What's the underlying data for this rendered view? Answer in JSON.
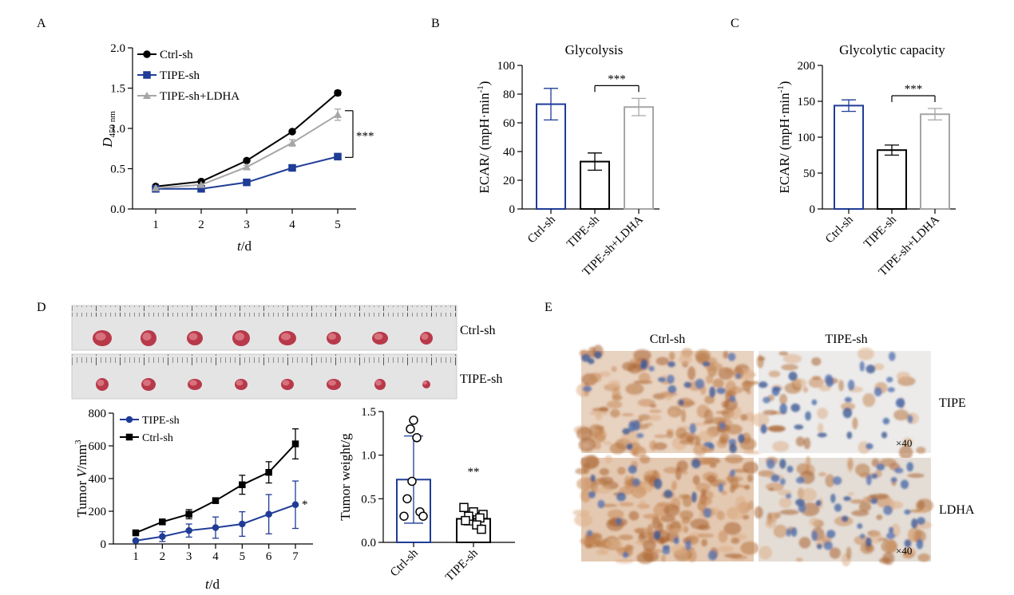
{
  "panels": {
    "A": "A",
    "B": "B",
    "C": "C",
    "D": "D",
    "E": "E"
  },
  "chart_data": [
    {
      "id": "A",
      "type": "line",
      "xlabel_italic": "t",
      "xlabel_unit": "/d",
      "ylabel_italic": "D",
      "ylabel_sub": "450 nm",
      "x": [
        1,
        2,
        3,
        4,
        5
      ],
      "xticks": [
        "1",
        "2",
        "3",
        "4",
        "5"
      ],
      "ylim": [
        0,
        2.0
      ],
      "yticks": [
        "0.0",
        "0.5",
        "1.0",
        "1.5",
        "2.0"
      ],
      "legend": "top-left",
      "series": [
        {
          "name": "Ctrl-sh",
          "color": "#000000",
          "marker": "circle",
          "values": [
            0.28,
            0.34,
            0.6,
            0.96,
            1.44
          ],
          "err": [
            0.01,
            0.01,
            0.02,
            0.02,
            0.03
          ]
        },
        {
          "name": "TIPE-sh",
          "color": "#1f3c96",
          "marker": "square",
          "values": [
            0.25,
            0.25,
            0.33,
            0.51,
            0.65
          ],
          "err": [
            0.01,
            0.01,
            0.01,
            0.02,
            0.02
          ]
        },
        {
          "name": "TIPE-sh+LDHA",
          "color": "#a6a6a6",
          "marker": "triangle",
          "values": [
            0.26,
            0.3,
            0.52,
            0.82,
            1.17
          ],
          "err": [
            0.01,
            0.01,
            0.02,
            0.04,
            0.07
          ]
        }
      ],
      "significance": "***"
    },
    {
      "id": "B",
      "type": "bar",
      "title": "Glycolysis",
      "ylabel": "ECAR/ (mpH·min",
      "ylabel_sup": "-1",
      "ylabel_close": ")",
      "ylim": [
        0,
        100
      ],
      "yticks": [
        "0",
        "20",
        "40",
        "60",
        "80",
        "100"
      ],
      "categories": [
        "Ctrl-sh",
        "TIPE-sh",
        "TIPE-sh+LDHA"
      ],
      "values": [
        73,
        33,
        71
      ],
      "errors": [
        11,
        6,
        6
      ],
      "colors": [
        "#1f3c96",
        "#000000",
        "#a6a6a6"
      ],
      "significance": "***"
    },
    {
      "id": "C",
      "type": "bar",
      "title": "Glycolytic capacity",
      "ylabel": "ECAR/ (mpH·min",
      "ylabel_sup": "-1",
      "ylabel_close": ")",
      "ylim": [
        0,
        200
      ],
      "yticks": [
        "0",
        "50",
        "100",
        "150",
        "200"
      ],
      "categories": [
        "Ctrl-sh",
        "TIPE-sh",
        "TIPE-sh+LDHA"
      ],
      "values": [
        144,
        82,
        132
      ],
      "errors": [
        8,
        7,
        8
      ],
      "colors": [
        "#1f3c96",
        "#000000",
        "#a6a6a6"
      ],
      "significance": "***"
    },
    {
      "id": "D-volume",
      "type": "line",
      "xlabel_italic": "t",
      "xlabel_unit": "/d",
      "ylabel_prefix": "Tumor ",
      "ylabel_italic": "V",
      "ylabel_unit": "/mm",
      "ylabel_sup": "3",
      "x": [
        1,
        2,
        3,
        4,
        5,
        6,
        7
      ],
      "xticks": [
        "1",
        "2",
        "3",
        "4",
        "5",
        "6",
        "7"
      ],
      "ylim": [
        0,
        800
      ],
      "yticks": [
        "0",
        "200",
        "400",
        "600",
        "800"
      ],
      "legend": "top-left",
      "series": [
        {
          "name": "TIPE-sh",
          "color": "#1f3c96",
          "marker": "circle",
          "values": [
            20,
            45,
            82,
            100,
            122,
            182,
            240
          ],
          "err": [
            8,
            30,
            40,
            65,
            75,
            120,
            145
          ]
        },
        {
          "name": "Ctrl-sh",
          "color": "#000000",
          "marker": "square",
          "values": [
            68,
            135,
            182,
            265,
            362,
            438,
            612
          ],
          "err": [
            8,
            10,
            28,
            8,
            58,
            65,
            92
          ]
        }
      ],
      "significance": "*"
    },
    {
      "id": "D-weight",
      "type": "scatter",
      "ylabel": "Tumor weight/g",
      "ylim": [
        0,
        1.5
      ],
      "yticks": [
        "0.0",
        "0.5",
        "1.0",
        "1.5"
      ],
      "categories": [
        "Ctrl-sh",
        "TIPE-sh"
      ],
      "means": [
        0.72,
        0.27
      ],
      "errors": [
        0.5,
        0.07
      ],
      "colors": [
        "#1f3c96",
        "#000000"
      ],
      "points": [
        [
          1.4,
          1.3,
          1.2,
          0.7,
          0.5,
          0.35,
          0.3,
          0.3
        ],
        [
          0.4,
          0.35,
          0.32,
          0.3,
          0.28,
          0.25,
          0.2,
          0.15
        ]
      ],
      "significance": "**"
    }
  ],
  "photo_labels": {
    "ctrl": "Ctrl-sh",
    "tipe": "TIPE-sh"
  },
  "ihc": {
    "col1": "Ctrl-sh",
    "col2": "TIPE-sh",
    "row1": "TIPE",
    "row2": "LDHA",
    "mag": "×40"
  }
}
